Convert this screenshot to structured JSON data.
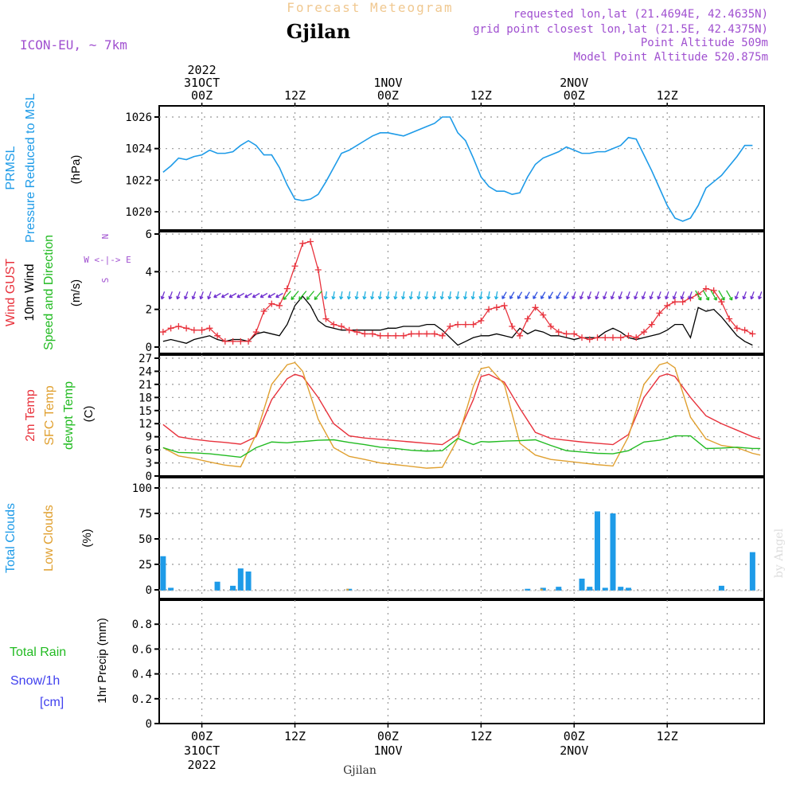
{
  "header": {
    "product_title": "Forecast Meteogram",
    "location": "Gjilan",
    "model": "ICON-EU, ~ 7km",
    "requested": "requested lon,lat (21.4694E, 42.4635N)",
    "grid_point": "grid point closest lon,lat (21.5E, 42.4375N)",
    "point_altitude": "Point Altitude 509m",
    "model_altitude": "Model Point Altitude 520.875m"
  },
  "footer": {
    "location": "Gjilan",
    "credit": "by Angel"
  },
  "time_axis": {
    "top": [
      {
        "h": 0,
        "lines": [
          "2022",
          "31OCT",
          "00Z"
        ]
      },
      {
        "h": 12,
        "lines": [
          "12Z"
        ]
      },
      {
        "h": 24,
        "lines": [
          "1NOV",
          "00Z"
        ]
      },
      {
        "h": 36,
        "lines": [
          "12Z"
        ]
      },
      {
        "h": 48,
        "lines": [
          "2NOV",
          "00Z"
        ]
      },
      {
        "h": 60,
        "lines": [
          "12Z"
        ]
      }
    ],
    "bottom": [
      {
        "h": 0,
        "lines": [
          "00Z",
          "31OCT",
          "2022"
        ]
      },
      {
        "h": 12,
        "lines": [
          "12Z"
        ]
      },
      {
        "h": 24,
        "lines": [
          "00Z",
          "1NOV"
        ]
      },
      {
        "h": 36,
        "lines": [
          "12Z"
        ]
      },
      {
        "h": 48,
        "lines": [
          "00Z",
          "2NOV"
        ]
      },
      {
        "h": 60,
        "lines": [
          "12Z"
        ]
      }
    ]
  },
  "colors": {
    "pressure": "#1e9be8",
    "gust": "#e8323c",
    "wind": "#000000",
    "arrow": "#22bb22",
    "t2m": "#e8323c",
    "sfc": "#e0a030",
    "dewpt": "#22bb22",
    "total_clouds": "#1e9be8",
    "low_clouds": "#e0a030",
    "rain": "#22bb22",
    "snow": "#4040ee",
    "header_purple": "#a050d0",
    "title_gold": "#f0c890"
  },
  "chart_data": [
    {
      "type": "line",
      "panel": "pressure",
      "title": "PRMSL Pressure Reduced to MSL",
      "label_lines": [
        "PRMSL",
        "Pressure Reduced to MSL"
      ],
      "unit": "(hPa)",
      "ylim": [
        1019,
        1026.5
      ],
      "yticks": [
        1020,
        1022,
        1024,
        1026
      ],
      "x_hours": [
        -5,
        -4,
        -3,
        -2,
        -1,
        0,
        1,
        2,
        3,
        4,
        5,
        6,
        7,
        8,
        9,
        10,
        11,
        12,
        13,
        14,
        15,
        16,
        17,
        18,
        19,
        20,
        21,
        22,
        23,
        24,
        25,
        26,
        27,
        28,
        29,
        30,
        31,
        32,
        33,
        34,
        35,
        36,
        37,
        38,
        39,
        40,
        41,
        42,
        43,
        44,
        45,
        46,
        47,
        48,
        49,
        50,
        51,
        52,
        53,
        54,
        55,
        56,
        57,
        58,
        59,
        60,
        61,
        62,
        63,
        64,
        65,
        66,
        67,
        68,
        69,
        70,
        71,
        72
      ],
      "series": [
        {
          "name": "PRMSL",
          "values": [
            1022.5,
            1022.9,
            1023.4,
            1023.3,
            1023.5,
            1023.6,
            1023.9,
            1023.7,
            1023.7,
            1023.8,
            1024.2,
            1024.5,
            1024.2,
            1023.6,
            1023.6,
            1022.8,
            1021.7,
            1020.8,
            1020.7,
            1020.8,
            1021.1,
            1021.9,
            1022.8,
            1023.7,
            1023.9,
            1024.2,
            1024.5,
            1024.8,
            1025.0,
            1025.0,
            1024.9,
            1024.8,
            1025.0,
            1025.2,
            1025.4,
            1025.6,
            1026.0,
            1026.0,
            1025.0,
            1024.5,
            1023.4,
            1022.2,
            1021.6,
            1021.3,
            1021.3,
            1021.1,
            1021.2,
            1022.2,
            1023.0,
            1023.4,
            1023.6,
            1023.8,
            1024.1,
            1023.9,
            1023.7,
            1023.7,
            1023.8,
            1023.8,
            1024.0,
            1024.2,
            1024.7,
            1024.6,
            1023.6,
            1022.6,
            1021.5,
            1020.4,
            1019.6,
            1019.4,
            1019.6,
            1020.4,
            1021.5,
            1021.9,
            1022.3,
            1022.9,
            1023.5,
            1024.2,
            1024.2
          ]
        }
      ]
    },
    {
      "type": "line",
      "panel": "wind",
      "title": "Wind GUST / 10m Wind Speed and Direction",
      "label_lines": [
        "Wind GUST",
        "10m Wind",
        "Speed and Direction"
      ],
      "unit": "(m/s)",
      "compass": [
        "N",
        "W <-|-> E",
        "S"
      ],
      "ylim": [
        -0.3,
        6
      ],
      "yticks": [
        0,
        2,
        4,
        6
      ],
      "x_hours": [
        -5,
        -4,
        -3,
        -2,
        -1,
        0,
        1,
        2,
        3,
        4,
        5,
        6,
        7,
        8,
        9,
        10,
        11,
        12,
        13,
        14,
        15,
        16,
        17,
        18,
        19,
        20,
        21,
        22,
        23,
        24,
        25,
        26,
        27,
        28,
        29,
        30,
        31,
        32,
        33,
        34,
        35,
        36,
        37,
        38,
        39,
        40,
        41,
        42,
        43,
        44,
        45,
        46,
        47,
        48,
        49,
        50,
        51,
        52,
        53,
        54,
        55,
        56,
        57,
        58,
        59,
        60,
        61,
        62,
        63,
        64,
        65,
        66,
        67,
        68,
        69,
        70,
        71,
        72
      ],
      "series": [
        {
          "name": "Wind GUST",
          "values": [
            0.8,
            1.0,
            1.1,
            1.0,
            0.9,
            0.9,
            1.0,
            0.6,
            0.3,
            0.3,
            0.3,
            0.3,
            0.8,
            1.9,
            2.3,
            2.2,
            3.1,
            4.3,
            5.5,
            5.6,
            4.1,
            1.5,
            1.2,
            1.1,
            0.9,
            0.8,
            0.7,
            0.7,
            0.6,
            0.6,
            0.6,
            0.6,
            0.7,
            0.7,
            0.7,
            0.7,
            0.6,
            1.1,
            1.2,
            1.2,
            1.2,
            1.4,
            2.0,
            2.1,
            2.2,
            1.1,
            0.6,
            1.5,
            2.1,
            1.7,
            1.1,
            0.8,
            0.7,
            0.7,
            0.5,
            0.4,
            0.5,
            0.5,
            0.5,
            0.5,
            0.6,
            0.5,
            0.8,
            1.2,
            1.8,
            2.2,
            2.4,
            2.4,
            2.6,
            2.8,
            3.1,
            3.0,
            2.4,
            1.5,
            1.0,
            0.9,
            0.7
          ]
        },
        {
          "name": "10m Wind",
          "values": [
            0.3,
            0.4,
            0.3,
            0.2,
            0.4,
            0.5,
            0.6,
            0.4,
            0.3,
            0.4,
            0.4,
            0.3,
            0.7,
            0.8,
            0.7,
            0.6,
            1.2,
            2.2,
            2.7,
            2.2,
            1.4,
            1.1,
            1.0,
            0.9,
            0.9,
            0.9,
            0.9,
            0.9,
            0.9,
            1.0,
            1.0,
            1.1,
            1.1,
            1.1,
            1.2,
            1.2,
            0.9,
            0.5,
            0.1,
            0.3,
            0.5,
            0.6,
            0.6,
            0.7,
            0.6,
            0.5,
            1.0,
            0.7,
            0.9,
            0.8,
            0.6,
            0.6,
            0.5,
            0.4,
            0.5,
            0.5,
            0.5,
            0.8,
            1.0,
            0.8,
            0.5,
            0.4,
            0.5,
            0.6,
            0.7,
            0.9,
            1.2,
            1.2,
            0.5,
            2.1,
            1.9,
            2.0,
            1.6,
            1.1,
            0.6,
            0.3,
            0.1
          ]
        }
      ],
      "wind_arrows": {
        "start_hour": -5,
        "end_hour": 72,
        "every": 1
      }
    },
    {
      "type": "line",
      "panel": "temperature",
      "title": "2m Temp / SFC Temp / dewpt Temp",
      "label_lines": [
        "2m Temp",
        "SFC Temp",
        "dewpt Temp"
      ],
      "unit": "(C)",
      "ylim": [
        0,
        27
      ],
      "yticks": [
        0,
        3,
        6,
        9,
        12,
        15,
        18,
        21,
        24,
        27
      ],
      "x_hours": [
        -5,
        -3,
        -1,
        1,
        3,
        5,
        7,
        9,
        11,
        12,
        13,
        15,
        17,
        19,
        21,
        23,
        25,
        27,
        29,
        31,
        33,
        35,
        36,
        37,
        39,
        41,
        43,
        45,
        47,
        49,
        51,
        53,
        55,
        57,
        59,
        60,
        61,
        63,
        65,
        67,
        69,
        71,
        72
      ],
      "series": [
        {
          "name": "2m Temp",
          "values": [
            11.8,
            9.0,
            8.4,
            8.0,
            7.7,
            7.3,
            9.0,
            17.5,
            22.3,
            23.3,
            22.8,
            18.0,
            12.0,
            9.2,
            8.7,
            8.4,
            8.1,
            7.8,
            7.5,
            7.2,
            9.5,
            17.5,
            22.8,
            23.3,
            21.5,
            15.5,
            10.0,
            8.6,
            8.2,
            7.8,
            7.5,
            7.2,
            9.5,
            18.0,
            22.8,
            23.4,
            22.8,
            18.0,
            13.8,
            12.0,
            10.5,
            9.0,
            8.5
          ]
        },
        {
          "name": "SFC Temp",
          "values": [
            6.5,
            4.6,
            4.0,
            3.2,
            2.5,
            2.1,
            9.5,
            21.0,
            25.5,
            26.0,
            24.0,
            13.0,
            6.5,
            4.5,
            3.8,
            3.0,
            2.6,
            2.2,
            1.8,
            2.0,
            8.5,
            20.5,
            24.6,
            25.0,
            21.0,
            7.5,
            4.8,
            3.8,
            3.4,
            3.0,
            2.6,
            2.3,
            9.0,
            21.0,
            25.5,
            26.0,
            24.8,
            13.5,
            8.5,
            7.0,
            6.5,
            5.2,
            4.8
          ]
        },
        {
          "name": "dewpt Temp",
          "values": [
            6.5,
            5.4,
            5.3,
            5.1,
            4.7,
            4.3,
            6.5,
            7.8,
            7.6,
            7.8,
            7.9,
            8.2,
            8.3,
            7.7,
            7.2,
            6.6,
            6.3,
            5.9,
            5.7,
            5.8,
            8.6,
            7.2,
            7.9,
            7.8,
            8.0,
            8.1,
            8.3,
            7.0,
            5.8,
            5.5,
            5.2,
            5.1,
            5.8,
            7.8,
            8.2,
            8.6,
            9.2,
            9.2,
            6.3,
            6.4,
            6.6,
            6.3,
            6.3
          ]
        }
      ]
    },
    {
      "type": "bar",
      "panel": "clouds",
      "title": "Total Clouds / Low Clouds",
      "label_lines": [
        "Total Clouds",
        "Low Clouds"
      ],
      "unit": "(%)",
      "ylim": [
        -2,
        100
      ],
      "yticks": [
        0,
        25,
        50,
        75,
        100
      ],
      "x_hours": [
        -5,
        -4,
        -3,
        -2,
        -1,
        0,
        1,
        2,
        3,
        4,
        5,
        6,
        7,
        8,
        9,
        10,
        11,
        12,
        13,
        14,
        15,
        16,
        17,
        18,
        19,
        20,
        21,
        22,
        23,
        24,
        25,
        26,
        27,
        28,
        29,
        30,
        31,
        32,
        33,
        34,
        35,
        36,
        37,
        38,
        39,
        40,
        41,
        42,
        43,
        44,
        45,
        46,
        47,
        48,
        49,
        50,
        51,
        52,
        53,
        54,
        55,
        56,
        57,
        58,
        59,
        60,
        61,
        62,
        63,
        64,
        65,
        66,
        67,
        68,
        69,
        70,
        71,
        72
      ],
      "series": [
        {
          "name": "Total Clouds",
          "values": [
            33,
            2,
            0,
            0,
            0,
            0,
            0,
            8,
            0,
            4,
            21,
            18,
            0,
            0,
            0,
            0,
            0,
            0,
            0,
            0,
            0,
            0,
            0,
            0,
            1,
            0,
            0,
            0,
            0,
            0,
            0,
            0,
            0,
            0,
            0,
            0,
            0,
            0,
            0,
            0,
            0,
            0,
            0,
            0,
            0,
            0,
            0,
            1,
            0,
            2,
            0,
            3,
            0,
            0,
            11,
            3,
            77,
            2,
            75,
            3,
            2,
            0,
            0,
            0,
            0,
            0,
            0,
            0,
            0,
            0,
            0,
            0,
            4,
            0,
            0,
            0,
            37
          ]
        },
        {
          "name": "Low Clouds",
          "values": [
            0,
            0,
            0,
            0,
            0,
            0,
            0,
            0,
            0,
            0,
            0,
            0,
            0,
            0,
            0,
            0,
            0,
            0,
            0,
            0,
            0,
            0,
            0,
            0,
            1,
            0,
            0,
            0,
            0,
            0,
            0,
            0,
            0,
            0,
            0,
            0,
            0,
            0,
            0,
            0,
            0,
            0,
            0,
            0,
            0,
            0,
            0,
            0,
            0,
            1,
            0,
            0,
            0,
            0,
            0,
            0,
            0,
            0,
            0,
            0,
            0,
            0,
            0,
            0,
            0,
            0,
            0,
            0,
            0,
            0,
            0,
            0,
            0,
            0,
            0,
            0,
            0
          ]
        }
      ]
    },
    {
      "type": "bar",
      "panel": "precip",
      "title": "1hr Precip (mm)",
      "label_lines": [
        "Total  Rain",
        "Snow/1h",
        "[cm]"
      ],
      "unit": "1hr Precip (mm)",
      "ylim": [
        0,
        1
      ],
      "yticks": [
        0,
        0.2,
        0.4,
        0.6,
        0.8
      ],
      "series": [
        {
          "name": "Total Rain",
          "values": []
        }
      ]
    }
  ]
}
